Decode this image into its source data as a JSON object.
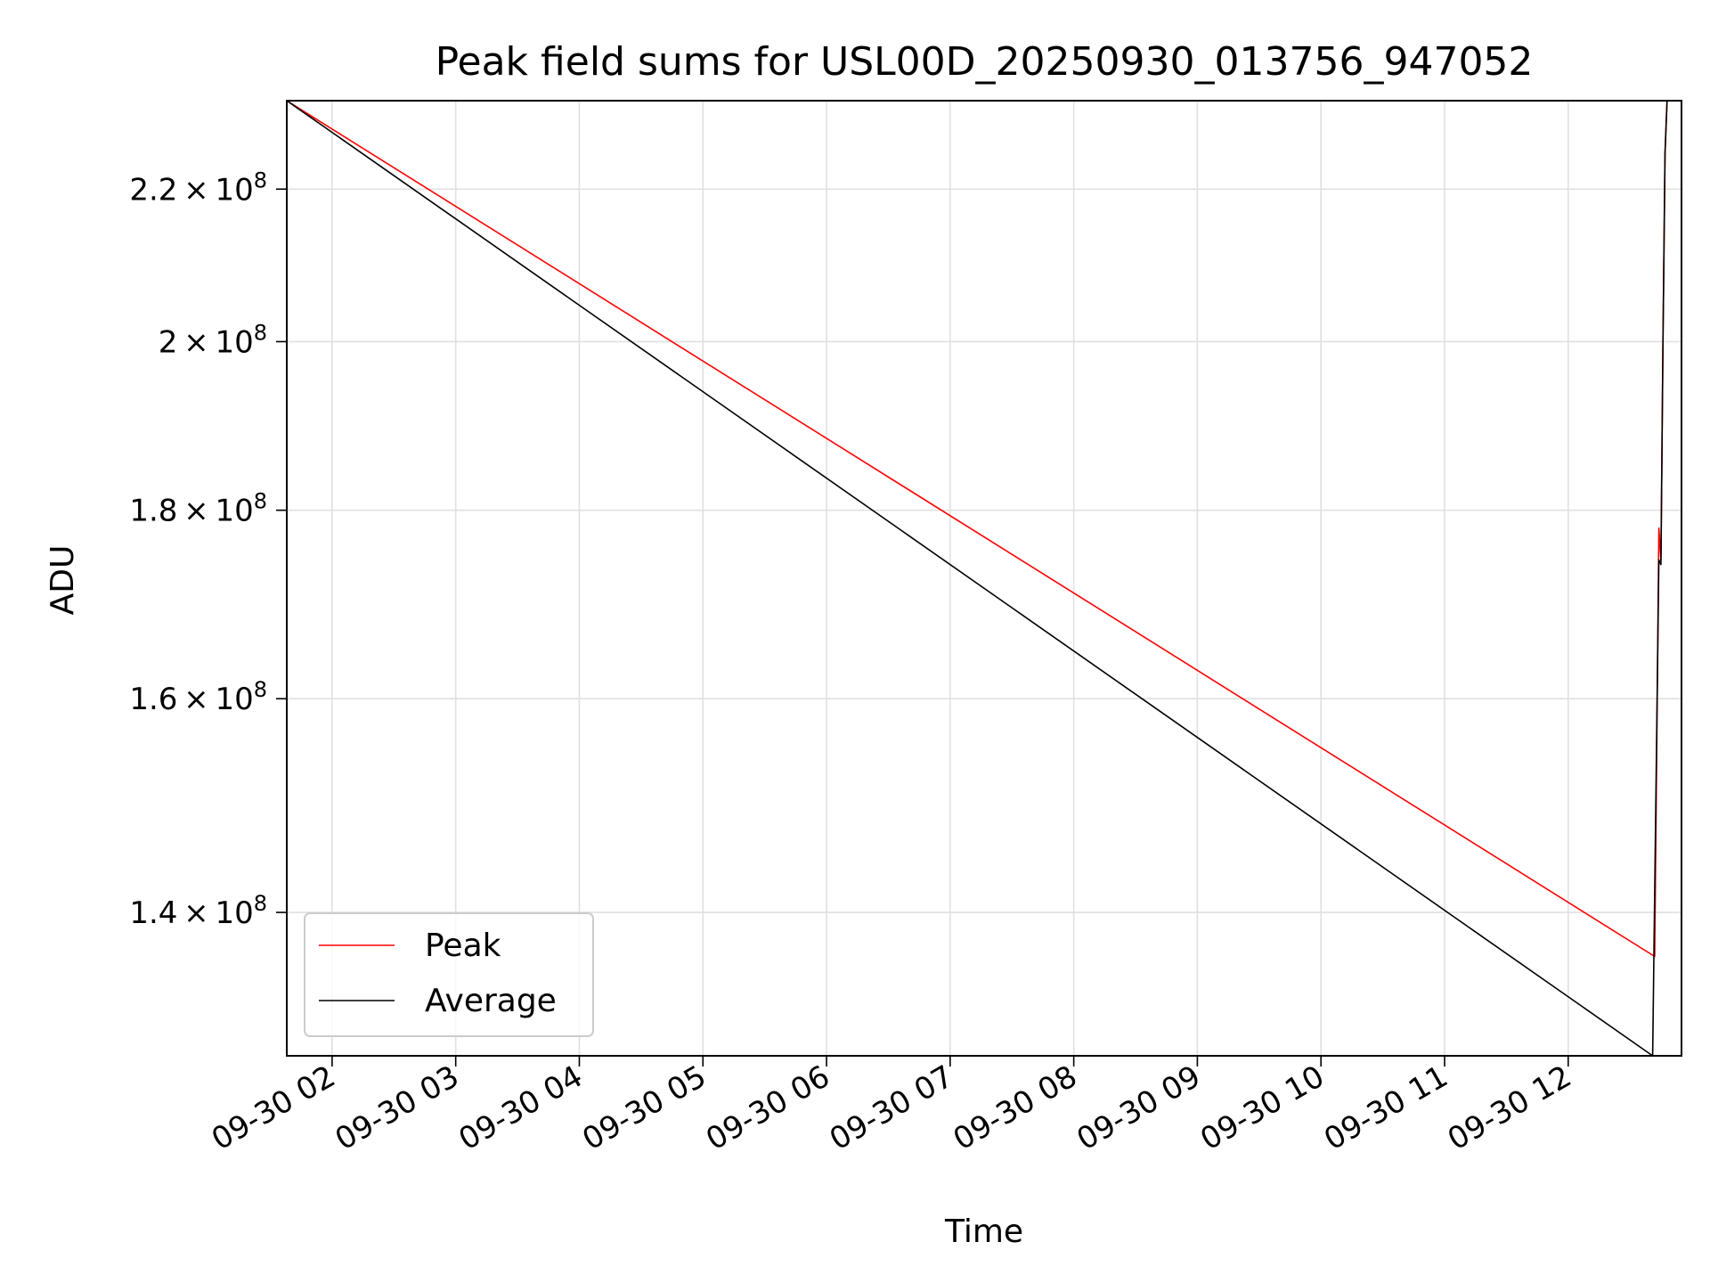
{
  "chart_data": {
    "type": "line",
    "title": "Peak field sums for USL00D_20250930_013756_947052",
    "xlabel": "Time",
    "ylabel": "ADU",
    "yscale": "log",
    "grid": true,
    "legend_placement": "lower-left",
    "xlim": [
      "2025-09-30 01:38",
      "2025-09-30 12:55"
    ],
    "ylim": [
      128000000,
      232500000
    ],
    "x_ticks": [
      {
        "value": "2025-09-30 02:00",
        "label": "09-30 02"
      },
      {
        "value": "2025-09-30 03:00",
        "label": "09-30 03"
      },
      {
        "value": "2025-09-30 04:00",
        "label": "09-30 04"
      },
      {
        "value": "2025-09-30 05:00",
        "label": "09-30 05"
      },
      {
        "value": "2025-09-30 06:00",
        "label": "09-30 06"
      },
      {
        "value": "2025-09-30 07:00",
        "label": "09-30 07"
      },
      {
        "value": "2025-09-30 08:00",
        "label": "09-30 08"
      },
      {
        "value": "2025-09-30 09:00",
        "label": "09-30 09"
      },
      {
        "value": "2025-09-30 10:00",
        "label": "09-30 10"
      },
      {
        "value": "2025-09-30 11:00",
        "label": "09-30 11"
      },
      {
        "value": "2025-09-30 12:00",
        "label": "09-30 12"
      }
    ],
    "y_ticks": [
      {
        "value": 140000000,
        "mantissa": "1.4",
        "base": "10",
        "exp": "8"
      },
      {
        "value": 160000000,
        "mantissa": "1.6",
        "base": "10",
        "exp": "8"
      },
      {
        "value": 180000000,
        "mantissa": "1.8",
        "base": "10",
        "exp": "8"
      },
      {
        "value": 200000000,
        "mantissa": "2",
        "base": "10",
        "exp": "8"
      },
      {
        "value": 220000000,
        "mantissa": "2.2",
        "base": "10",
        "exp": "8"
      }
    ],
    "series": [
      {
        "name": "Peak",
        "color": "#ff0000",
        "x": [
          "2025-09-30 01:38",
          "2025-09-30 12:42",
          "2025-09-30 12:44",
          "2025-09-30 12:45",
          "2025-09-30 12:46",
          "2025-09-30 12:47",
          "2025-09-30 12:48"
        ],
        "y": [
          232500000,
          136200000,
          178000000,
          174500000,
          200000000,
          225000000,
          232500000
        ]
      },
      {
        "name": "Average",
        "color": "#000000",
        "x": [
          "2025-09-30 01:38",
          "2025-09-30 12:41",
          "2025-09-30 12:44",
          "2025-09-30 12:45",
          "2025-09-30 12:46",
          "2025-09-30 12:47",
          "2025-09-30 12:48"
        ],
        "y": [
          232500000,
          128000000,
          174500000,
          174000000,
          200000000,
          225000000,
          232500000
        ]
      }
    ]
  }
}
